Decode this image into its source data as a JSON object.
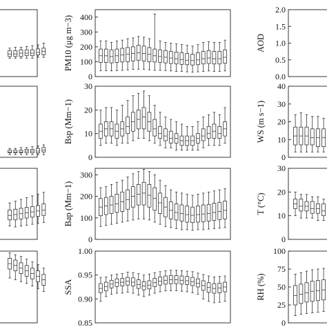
{
  "chart_data": [
    {
      "id": "r1-left-partial",
      "type": "box",
      "ylabel": "",
      "ylim": [
        0,
        80
      ],
      "yticks": [],
      "boxes": [
        [
          22,
          24,
          27,
          31,
          34
        ],
        [
          22,
          24,
          27,
          31,
          35
        ],
        [
          22,
          24,
          28,
          32,
          35
        ],
        [
          22,
          25,
          28,
          32,
          36
        ],
        [
          22,
          25,
          28,
          32,
          37
        ],
        [
          23,
          26,
          29,
          33,
          38
        ],
        [
          23,
          26,
          30,
          34,
          40
        ]
      ]
    },
    {
      "id": "r2-left-partial",
      "type": "box",
      "ylabel": "",
      "ylim": [
        0,
        80
      ],
      "yticks": [],
      "boxes": [
        [
          3,
          5,
          6,
          8,
          10
        ],
        [
          3,
          5,
          6,
          8,
          10
        ],
        [
          3,
          5,
          6,
          8,
          11
        ],
        [
          3,
          5,
          7,
          9,
          11
        ],
        [
          3,
          5,
          7,
          9,
          12
        ],
        [
          3,
          5,
          7,
          10,
          13
        ],
        [
          3,
          6,
          8,
          11,
          14
        ]
      ]
    },
    {
      "id": "r3-left-partial",
      "type": "box",
      "ylabel": "",
      "ylim": [
        0,
        80
      ],
      "yticks": [],
      "boxes": [
        [
          15,
          22,
          27,
          33,
          41
        ],
        [
          14,
          22,
          28,
          34,
          43
        ],
        [
          15,
          23,
          29,
          35,
          45
        ],
        [
          16,
          24,
          30,
          36,
          47
        ],
        [
          17,
          25,
          31,
          37,
          49
        ],
        [
          18,
          26,
          32,
          38,
          51
        ],
        [
          19,
          27,
          33,
          40,
          53
        ]
      ]
    },
    {
      "id": "r4-left-partial",
      "type": "box",
      "ylabel": "",
      "ylim": [
        0,
        80
      ],
      "yticks": [],
      "boxes": [
        [
          50,
          60,
          66,
          72,
          78
        ],
        [
          48,
          58,
          64,
          70,
          76
        ],
        [
          46,
          55,
          61,
          67,
          74
        ],
        [
          44,
          52,
          58,
          64,
          71
        ],
        [
          41,
          49,
          55,
          61,
          68
        ],
        [
          38,
          46,
          52,
          58,
          65
        ],
        [
          35,
          42,
          48,
          54,
          61
        ]
      ]
    },
    {
      "id": "pm10",
      "type": "box",
      "ylabel": "PM10 (μg m−3)",
      "ylim": [
        0,
        450
      ],
      "yticks": [
        0,
        100,
        200,
        300,
        400
      ],
      "boxes": [
        [
          40,
          95,
          140,
          185,
          240
        ],
        [
          40,
          95,
          140,
          185,
          240
        ],
        [
          38,
          92,
          135,
          180,
          230
        ],
        [
          40,
          95,
          140,
          185,
          240
        ],
        [
          42,
          98,
          145,
          190,
          245
        ],
        [
          45,
          100,
          150,
          195,
          255
        ],
        [
          48,
          105,
          155,
          200,
          260
        ],
        [
          50,
          110,
          160,
          210,
          270
        ],
        [
          48,
          105,
          155,
          205,
          265
        ],
        [
          45,
          100,
          150,
          195,
          255
        ],
        [
          42,
          98,
          140,
          185,
          420
        ],
        [
          42,
          95,
          135,
          180,
          240
        ],
        [
          40,
          92,
          130,
          175,
          230
        ],
        [
          38,
          88,
          125,
          170,
          225
        ],
        [
          35,
          85,
          120,
          165,
          220
        ],
        [
          35,
          82,
          115,
          160,
          215
        ],
        [
          32,
          80,
          110,
          155,
          210
        ],
        [
          30,
          78,
          108,
          150,
          205
        ],
        [
          32,
          80,
          112,
          160,
          215
        ],
        [
          35,
          85,
          120,
          170,
          230
        ],
        [
          38,
          88,
          125,
          175,
          235
        ],
        [
          35,
          85,
          120,
          170,
          230
        ],
        [
          35,
          85,
          120,
          170,
          230
        ],
        [
          38,
          90,
          130,
          180,
          245
        ]
      ]
    },
    {
      "id": "aod",
      "type": "box",
      "ylabel": "AOD",
      "ylim": [
        0,
        2
      ],
      "yticks": [
        0,
        0.5,
        1,
        1.5,
        2
      ],
      "yticklabels": [
        "0.0",
        "0.5",
        "1.0",
        "1.5",
        "2.0"
      ],
      "boxes": []
    },
    {
      "id": "bsp",
      "type": "box",
      "ylabel": "Bsp (Mm−1)",
      "ylim": [
        0,
        30
      ],
      "yticks": [
        0,
        10,
        20,
        30
      ],
      "boxes": [
        [
          5,
          8,
          11,
          14,
          20
        ],
        [
          6,
          9,
          12,
          15,
          21
        ],
        [
          6,
          9,
          12,
          15,
          21
        ],
        [
          5,
          8,
          11,
          14,
          20
        ],
        [
          6,
          9,
          12,
          15,
          22
        ],
        [
          6,
          10,
          13,
          17,
          24
        ],
        [
          7,
          11,
          15,
          19,
          26
        ],
        [
          8,
          12,
          16,
          20,
          27
        ],
        [
          8,
          12,
          17,
          21,
          28
        ],
        [
          7,
          11,
          15,
          19,
          26
        ],
        [
          6,
          9,
          12,
          16,
          22
        ],
        [
          5,
          8,
          10,
          13,
          19
        ],
        [
          4,
          7,
          9,
          12,
          17
        ],
        [
          4,
          6,
          8,
          11,
          16
        ],
        [
          3,
          6,
          8,
          10,
          15
        ],
        [
          3,
          5,
          7,
          9,
          14
        ],
        [
          3,
          5,
          7,
          9,
          13
        ],
        [
          3,
          5,
          7,
          9,
          13
        ],
        [
          3,
          6,
          8,
          10,
          15
        ],
        [
          4,
          7,
          9,
          12,
          17
        ],
        [
          5,
          8,
          10,
          13,
          18
        ],
        [
          5,
          8,
          11,
          14,
          19
        ],
        [
          5,
          8,
          10,
          13,
          18
        ],
        [
          6,
          9,
          12,
          15,
          21
        ]
      ]
    },
    {
      "id": "ws",
      "type": "box",
      "ylabel": "WS (m s−1)",
      "ylim": [
        0,
        40
      ],
      "yticks": [
        0,
        10,
        20,
        30,
        40
      ],
      "boxes": [
        [
          3,
          7,
          12,
          17,
          24
        ],
        [
          3,
          7,
          12,
          17,
          25
        ],
        [
          3,
          7,
          12,
          17,
          24
        ],
        [
          3,
          7,
          11,
          16,
          23
        ],
        [
          3,
          6,
          11,
          16,
          23
        ],
        [
          3,
          6,
          11,
          16,
          22
        ],
        [
          3,
          6,
          10,
          15,
          21
        ],
        [
          3,
          6,
          10,
          15,
          21
        ],
        [
          2,
          6,
          10,
          14,
          20
        ]
      ]
    },
    {
      "id": "bap",
      "type": "box",
      "ylabel": "Bap (Mm−1)",
      "ylim": [
        0,
        330
      ],
      "yticks": [
        0,
        100,
        200,
        300
      ],
      "boxes": [
        [
          60,
          110,
          150,
          190,
          240
        ],
        [
          65,
          115,
          155,
          195,
          245
        ],
        [
          70,
          120,
          160,
          200,
          255
        ],
        [
          75,
          125,
          165,
          210,
          265
        ],
        [
          80,
          130,
          175,
          220,
          275
        ],
        [
          85,
          140,
          185,
          230,
          290
        ],
        [
          90,
          150,
          200,
          245,
          305
        ],
        [
          95,
          160,
          210,
          255,
          315
        ],
        [
          95,
          160,
          215,
          265,
          325
        ],
        [
          90,
          150,
          205,
          255,
          315
        ],
        [
          80,
          135,
          190,
          240,
          300
        ],
        [
          70,
          120,
          170,
          215,
          275
        ],
        [
          60,
          105,
          150,
          195,
          250
        ],
        [
          55,
          95,
          135,
          175,
          230
        ],
        [
          50,
          90,
          125,
          165,
          220
        ],
        [
          45,
          85,
          120,
          160,
          215
        ],
        [
          45,
          80,
          115,
          155,
          210
        ],
        [
          42,
          78,
          112,
          150,
          205
        ],
        [
          45,
          80,
          115,
          155,
          210
        ],
        [
          45,
          82,
          118,
          160,
          215
        ],
        [
          48,
          85,
          120,
          162,
          220
        ],
        [
          50,
          88,
          125,
          168,
          225
        ],
        [
          52,
          92,
          130,
          172,
          230
        ],
        [
          55,
          95,
          135,
          178,
          235
        ]
      ]
    },
    {
      "id": "temp",
      "type": "box",
      "ylabel": "T (°C)",
      "ylim": [
        0,
        30
      ],
      "yticks": [
        0,
        10,
        20,
        30
      ],
      "boxes": [
        [
          10,
          13,
          15,
          17,
          20
        ],
        [
          9,
          12,
          14,
          17,
          19
        ],
        [
          9,
          12,
          14,
          16,
          19
        ],
        [
          9,
          11,
          13,
          16,
          18
        ],
        [
          8,
          11,
          13,
          15,
          18
        ],
        [
          8,
          10,
          12,
          15,
          17
        ],
        [
          7,
          10,
          12,
          14,
          17
        ],
        [
          7,
          10,
          12,
          14,
          16
        ],
        [
          7,
          9,
          11,
          13,
          16
        ]
      ]
    },
    {
      "id": "ssa",
      "type": "box",
      "ylabel": "SSA",
      "ylim": [
        0.85,
        1
      ],
      "yticks": [
        0.85,
        0.9,
        0.95,
        1
      ],
      "yticklabels": [
        "0.85",
        "0.90",
        "0.95",
        "1.00"
      ],
      "boxes": [
        [
          0.895,
          0.913,
          0.922,
          0.932,
          0.945
        ],
        [
          0.905,
          0.917,
          0.926,
          0.935,
          0.946
        ],
        [
          0.91,
          0.923,
          0.931,
          0.939,
          0.95
        ],
        [
          0.912,
          0.926,
          0.934,
          0.942,
          0.952
        ],
        [
          0.912,
          0.927,
          0.935,
          0.943,
          0.953
        ],
        [
          0.914,
          0.929,
          0.937,
          0.945,
          0.956
        ],
        [
          0.912,
          0.927,
          0.935,
          0.944,
          0.955
        ],
        [
          0.908,
          0.922,
          0.93,
          0.94,
          0.953
        ],
        [
          0.905,
          0.919,
          0.927,
          0.936,
          0.95
        ],
        [
          0.908,
          0.921,
          0.929,
          0.938,
          0.952
        ],
        [
          0.912,
          0.926,
          0.934,
          0.943,
          0.955
        ],
        [
          0.915,
          0.929,
          0.937,
          0.946,
          0.957
        ],
        [
          0.917,
          0.931,
          0.939,
          0.948,
          0.959
        ],
        [
          0.917,
          0.932,
          0.94,
          0.949,
          0.96
        ],
        [
          0.917,
          0.932,
          0.94,
          0.949,
          0.96
        ],
        [
          0.916,
          0.931,
          0.939,
          0.948,
          0.959
        ],
        [
          0.915,
          0.93,
          0.938,
          0.947,
          0.958
        ],
        [
          0.913,
          0.928,
          0.936,
          0.945,
          0.957
        ],
        [
          0.91,
          0.925,
          0.933,
          0.942,
          0.954
        ],
        [
          0.9,
          0.918,
          0.928,
          0.938,
          0.951
        ],
        [
          0.895,
          0.914,
          0.924,
          0.934,
          0.948
        ],
        [
          0.892,
          0.912,
          0.922,
          0.932,
          0.946
        ],
        [
          0.893,
          0.913,
          0.923,
          0.933,
          0.947
        ],
        [
          0.895,
          0.915,
          0.925,
          0.935,
          0.948
        ]
      ]
    },
    {
      "id": "rh",
      "type": "box",
      "ylabel": "RH (%)",
      "ylim": [
        0,
        100
      ],
      "yticks": [
        0,
        25,
        50,
        75,
        100
      ],
      "boxes": [
        [
          10,
          25,
          38,
          52,
          68
        ],
        [
          12,
          27,
          40,
          54,
          70
        ],
        [
          13,
          29,
          42,
          56,
          72
        ],
        [
          14,
          30,
          44,
          58,
          74
        ],
        [
          15,
          31,
          45,
          59,
          75
        ],
        [
          16,
          32,
          46,
          60,
          76
        ],
        [
          17,
          33,
          47,
          61,
          77
        ],
        [
          18,
          34,
          48,
          62,
          78
        ],
        [
          19,
          35,
          49,
          63,
          79
        ]
      ]
    }
  ]
}
